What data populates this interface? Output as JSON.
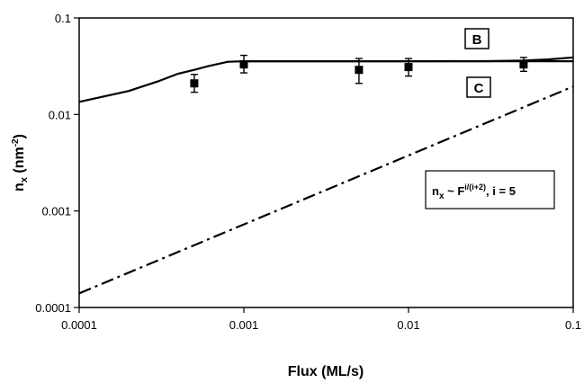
{
  "chart_data": {
    "type": "line",
    "title": "",
    "xlabel": "Flux  (ML/s)",
    "ylabel_main": "n",
    "ylabel_sub": "x",
    "ylabel_rest": " (nm",
    "ylabel_sup": "-2",
    "ylabel_end": ")",
    "xscale": "log",
    "yscale": "log",
    "xlim": [
      0.0001,
      0.1
    ],
    "ylim": [
      0.0001,
      0.1
    ],
    "x_ticks": [
      0.0001,
      0.001,
      0.01,
      0.1
    ],
    "x_tick_labels": [
      "0.0001",
      "0.001",
      "0.01",
      "0.1"
    ],
    "y_ticks": [
      0.0001,
      0.001,
      0.01,
      0.1
    ],
    "y_tick_labels": [
      "0.0001",
      "0.001",
      "0.01",
      "0.1"
    ],
    "grid": false,
    "series": [
      {
        "style": "solid",
        "color": "#000000",
        "x": [
          0.0001,
          0.0002,
          0.0003,
          0.0004,
          0.0005,
          0.0006,
          0.0008,
          0.001,
          0.01,
          0.1
        ],
        "y": [
          0.0135,
          0.0175,
          0.022,
          0.0265,
          0.029,
          0.0315,
          0.0352,
          0.0356,
          0.0356,
          0.0356
        ]
      },
      {
        "style": "solid",
        "color": "#000000",
        "x": [
          0.001,
          0.01,
          0.03,
          0.05,
          0.07,
          0.1
        ],
        "y": [
          0.0356,
          0.0356,
          0.0357,
          0.0362,
          0.0372,
          0.039
        ]
      },
      {
        "style": "dashdot",
        "color": "#000000",
        "x": [
          0.0001,
          0.1
        ],
        "y": [
          0.00014,
          0.0195
        ]
      },
      {
        "style": "markers",
        "color": "#000000",
        "x": [
          0.0005,
          0.001,
          0.005,
          0.01,
          0.05
        ],
        "y": [
          0.021,
          0.033,
          0.029,
          0.031,
          0.033
        ],
        "err_low": [
          0.017,
          0.027,
          0.021,
          0.025,
          0.028
        ],
        "err_high": [
          0.026,
          0.041,
          0.038,
          0.038,
          0.039
        ]
      }
    ],
    "annotations": {
      "box_b": "B",
      "box_c": "C",
      "formula_n": "n",
      "formula_x": "x",
      "formula_tilde": " ~ F",
      "formula_exp": "i/(i+2)",
      "formula_rest": ", i = 5"
    }
  }
}
